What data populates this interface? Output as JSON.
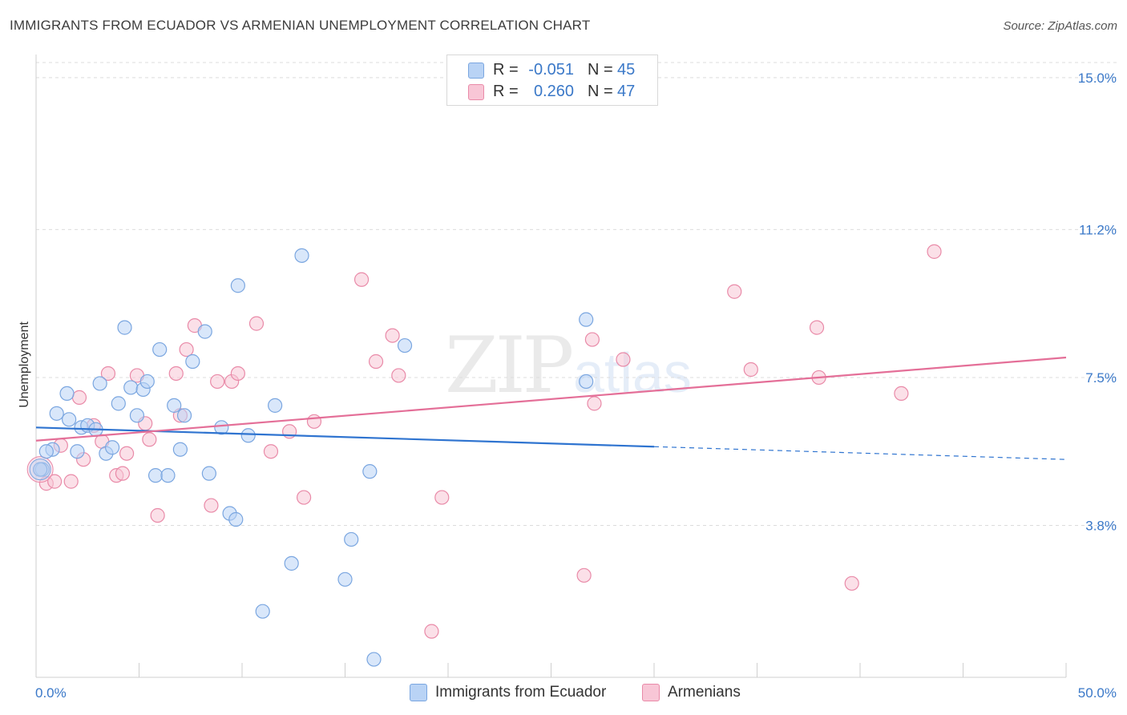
{
  "title": "IMMIGRANTS FROM ECUADOR VS ARMENIAN UNEMPLOYMENT CORRELATION CHART",
  "source": "Source: ZipAtlas.com",
  "watermark": {
    "zip": "ZIP",
    "atlas": "atlas"
  },
  "legend": {
    "r_label": "R =",
    "n_label": "N =",
    "rows": [
      {
        "r": "-0.051",
        "n": "45"
      },
      {
        "r": "0.260",
        "n": "47"
      }
    ]
  },
  "colors": {
    "blue_fill": "#b9d3f5",
    "blue_stroke": "#7aa6e0",
    "blue_line": "#2f74d0",
    "pink_fill": "#f8c6d6",
    "pink_stroke": "#e98aa8",
    "pink_line": "#e46f98"
  },
  "chart_data": {
    "type": "scatter",
    "title": "IMMIGRANTS FROM ECUADOR VS ARMENIAN UNEMPLOYMENT CORRELATION CHART",
    "xlabel": "",
    "ylabel": "Unemployment",
    "xlim": [
      0,
      50
    ],
    "ylim": [
      0,
      15.7
    ],
    "x_tick_labels": [
      "0.0%",
      "50.0%"
    ],
    "y_ticks": [
      3.8,
      7.5,
      11.2,
      15.0
    ],
    "y_tick_labels": [
      "3.8%",
      "7.5%",
      "11.2%",
      "15.0%"
    ],
    "grid": true,
    "legend_position": "top-center",
    "series": [
      {
        "name": "Immigrants from Ecuador",
        "color": "#7aa6e0",
        "trend": {
          "x": [
            0,
            30
          ],
          "y": [
            6.25,
            5.77
          ],
          "dashed_to": [
            50,
            5.45
          ]
        },
        "points": [
          [
            0.3,
            5.2
          ],
          [
            0.8,
            5.7
          ],
          [
            0.5,
            5.65
          ],
          [
            1.0,
            6.6
          ],
          [
            1.5,
            7.1
          ],
          [
            1.6,
            6.45
          ],
          [
            2.0,
            5.65
          ],
          [
            2.2,
            6.25
          ],
          [
            2.5,
            6.3
          ],
          [
            2.9,
            6.2
          ],
          [
            3.1,
            7.35
          ],
          [
            3.4,
            5.6
          ],
          [
            3.7,
            5.75
          ],
          [
            4.0,
            6.85
          ],
          [
            4.3,
            8.75
          ],
          [
            4.6,
            7.25
          ],
          [
            4.9,
            6.55
          ],
          [
            5.2,
            7.2
          ],
          [
            5.4,
            7.4
          ],
          [
            5.8,
            5.05
          ],
          [
            6.0,
            8.2
          ],
          [
            6.4,
            5.05
          ],
          [
            6.7,
            6.8
          ],
          [
            7.0,
            5.7
          ],
          [
            7.2,
            6.55
          ],
          [
            7.6,
            7.9
          ],
          [
            8.2,
            8.65
          ],
          [
            8.4,
            5.1
          ],
          [
            9.0,
            6.25
          ],
          [
            9.4,
            4.1
          ],
          [
            9.7,
            3.95
          ],
          [
            9.8,
            9.8
          ],
          [
            10.3,
            6.05
          ],
          [
            11.0,
            1.65
          ],
          [
            11.6,
            6.8
          ],
          [
            12.4,
            2.85
          ],
          [
            12.9,
            10.55
          ],
          [
            15.0,
            2.45
          ],
          [
            15.3,
            3.45
          ],
          [
            16.2,
            5.15
          ],
          [
            16.4,
            0.45
          ],
          [
            17.9,
            8.3
          ],
          [
            26.7,
            8.95
          ],
          [
            26.7,
            7.4
          ],
          [
            0.2,
            5.2
          ]
        ]
      },
      {
        "name": "Armenians",
        "color": "#e98aa8",
        "trend": {
          "x": [
            0,
            50
          ],
          "y": [
            5.92,
            8.0
          ]
        },
        "points": [
          [
            0.2,
            5.2
          ],
          [
            0.5,
            4.85
          ],
          [
            0.9,
            4.9
          ],
          [
            1.2,
            5.8
          ],
          [
            1.7,
            4.9
          ],
          [
            2.1,
            7.0
          ],
          [
            2.3,
            5.45
          ],
          [
            2.8,
            6.3
          ],
          [
            3.2,
            5.9
          ],
          [
            3.5,
            7.6
          ],
          [
            3.9,
            5.05
          ],
          [
            4.2,
            5.1
          ],
          [
            4.4,
            5.6
          ],
          [
            4.9,
            7.55
          ],
          [
            5.3,
            6.35
          ],
          [
            5.5,
            5.95
          ],
          [
            5.9,
            4.05
          ],
          [
            6.8,
            7.6
          ],
          [
            7.0,
            6.55
          ],
          [
            7.3,
            8.2
          ],
          [
            7.7,
            8.8
          ],
          [
            8.5,
            4.3
          ],
          [
            8.8,
            7.4
          ],
          [
            9.5,
            7.4
          ],
          [
            9.8,
            7.6
          ],
          [
            10.7,
            8.85
          ],
          [
            11.4,
            5.65
          ],
          [
            12.3,
            6.15
          ],
          [
            13.0,
            4.5
          ],
          [
            13.5,
            6.4
          ],
          [
            15.8,
            9.95
          ],
          [
            16.5,
            7.9
          ],
          [
            17.3,
            8.55
          ],
          [
            17.6,
            7.55
          ],
          [
            19.2,
            1.15
          ],
          [
            19.7,
            4.5
          ],
          [
            26.6,
            2.55
          ],
          [
            27.0,
            8.45
          ],
          [
            27.1,
            6.85
          ],
          [
            28.5,
            7.95
          ],
          [
            33.9,
            9.65
          ],
          [
            34.7,
            7.7
          ],
          [
            37.9,
            8.75
          ],
          [
            38.0,
            7.5
          ],
          [
            39.6,
            2.35
          ],
          [
            42.0,
            7.1
          ],
          [
            43.6,
            10.65
          ]
        ]
      }
    ]
  },
  "bottom_legend": [
    "Immigrants from Ecuador",
    "Armenians"
  ]
}
